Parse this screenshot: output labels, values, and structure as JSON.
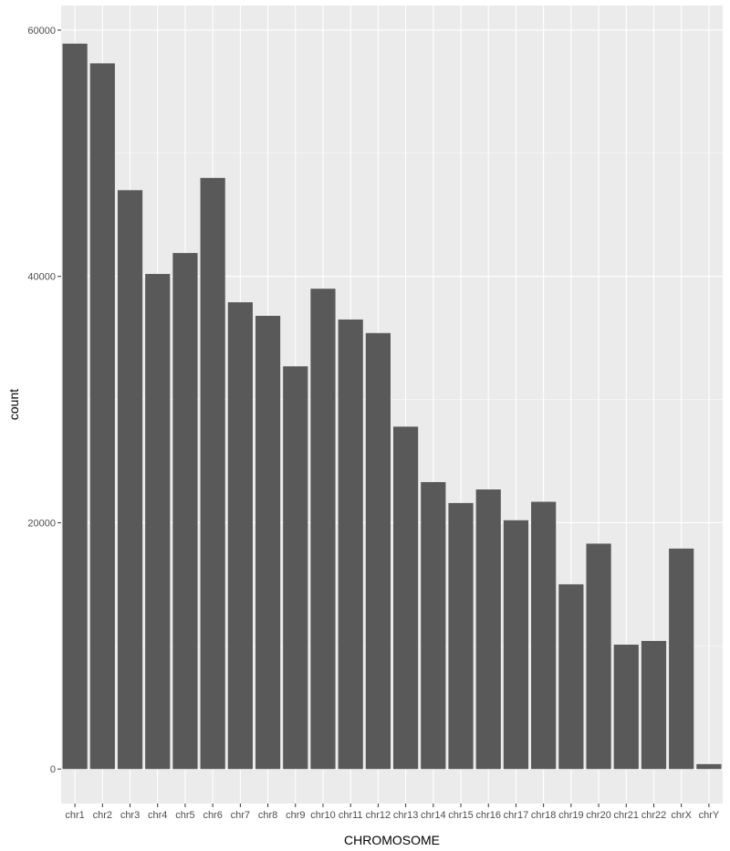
{
  "chart_data": {
    "type": "bar",
    "title": "",
    "xlabel": "CHROMOSOME",
    "ylabel": "count",
    "categories": [
      "chr1",
      "chr2",
      "chr3",
      "chr4",
      "chr5",
      "chr6",
      "chr7",
      "chr8",
      "chr9",
      "chr10",
      "chr11",
      "chr12",
      "chr13",
      "chr14",
      "chr15",
      "chr16",
      "chr17",
      "chr18",
      "chr19",
      "chr20",
      "chr21",
      "chr22",
      "chrX",
      "chrY"
    ],
    "values": [
      58900,
      57300,
      47000,
      40200,
      41900,
      48000,
      37900,
      36800,
      32700,
      39000,
      36500,
      35400,
      27800,
      23300,
      21600,
      22700,
      20200,
      21700,
      15000,
      18300,
      10100,
      10400,
      17900,
      400
    ],
    "ylim": [
      -2800,
      62000
    ],
    "yticks": [
      0,
      20000,
      40000,
      60000
    ],
    "ytick_labels": [
      "0",
      "20000",
      "40000",
      "60000"
    ],
    "grid": true,
    "colors": {
      "panel_bg": "#ebebeb",
      "grid_major": "#ffffff",
      "bar_fill": "#595959",
      "tick_text": "#4d4d4d",
      "tick_mark": "#333333",
      "axis_title": "#000000"
    }
  }
}
